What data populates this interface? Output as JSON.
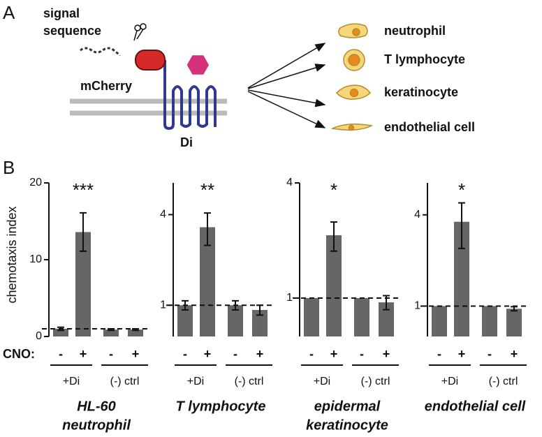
{
  "panel_a": {
    "label": "A",
    "signal_lines": [
      "signal",
      "sequence"
    ],
    "protein_label": "mCherry",
    "receptor_label": "Di",
    "cells": [
      "neutrophil",
      "T lymphocyte",
      "keratinocyte",
      "endothelial cell"
    ]
  },
  "panel_b_label": "B",
  "y_label": "chemotaxis index",
  "cno_label": "CNO:",
  "chart_data": [
    {
      "type": "bar",
      "title": [
        "HL-60",
        "neutrophil"
      ],
      "annotation": "***",
      "categories": [
        "-",
        "+",
        "-",
        "+"
      ],
      "groups": [
        "+Di",
        "(-) ctrl"
      ],
      "values": [
        1.0,
        13.6,
        0.9,
        0.9
      ],
      "errors": [
        0.2,
        2.5,
        0.1,
        0.1
      ],
      "color": "#666666",
      "ylim": [
        0,
        20
      ],
      "yticks": [
        0,
        10,
        20
      ],
      "log_scale": false,
      "reference_line": 1
    },
    {
      "type": "bar",
      "title": [
        "T lymphocyte"
      ],
      "annotation": "**",
      "categories": [
        "-",
        "+",
        "-",
        "+"
      ],
      "groups": [
        "+Di",
        "(-) ctrl"
      ],
      "values": [
        1.0,
        3.3,
        1.0,
        0.93
      ],
      "errors": [
        0.07,
        0.8,
        0.07,
        0.07
      ],
      "color": "#666666",
      "ylim": [
        0.62,
        6.5
      ],
      "yticks": [
        1,
        4
      ],
      "log_scale": true,
      "reference_line": 1
    },
    {
      "type": "bar",
      "title": [
        "epidermal",
        "keratinocyte"
      ],
      "annotation": "*",
      "categories": [
        "-",
        "+",
        "-",
        "+"
      ],
      "groups": [
        "+Di",
        "(-) ctrl"
      ],
      "values": [
        1.0,
        2.13,
        1.0,
        0.95
      ],
      "errors": [
        0,
        0.37,
        0,
        0.08
      ],
      "color": "#666666",
      "ylim": [
        0.63,
        4
      ],
      "yticks": [
        1,
        4
      ],
      "log_scale": true,
      "reference_line": 1
    },
    {
      "type": "bar",
      "title": [
        "endothelial cell"
      ],
      "annotation": "*",
      "categories": [
        "-",
        "+",
        "-",
        "+"
      ],
      "groups": [
        "+Di",
        "(-) ctrl"
      ],
      "values": [
        1.0,
        3.6,
        1.0,
        0.96
      ],
      "errors": [
        0,
        1.2,
        0,
        0.03
      ],
      "color": "#666666",
      "ylim": [
        0.63,
        6.5
      ],
      "yticks": [
        1,
        4
      ],
      "log_scale": true,
      "reference_line": 1
    }
  ]
}
